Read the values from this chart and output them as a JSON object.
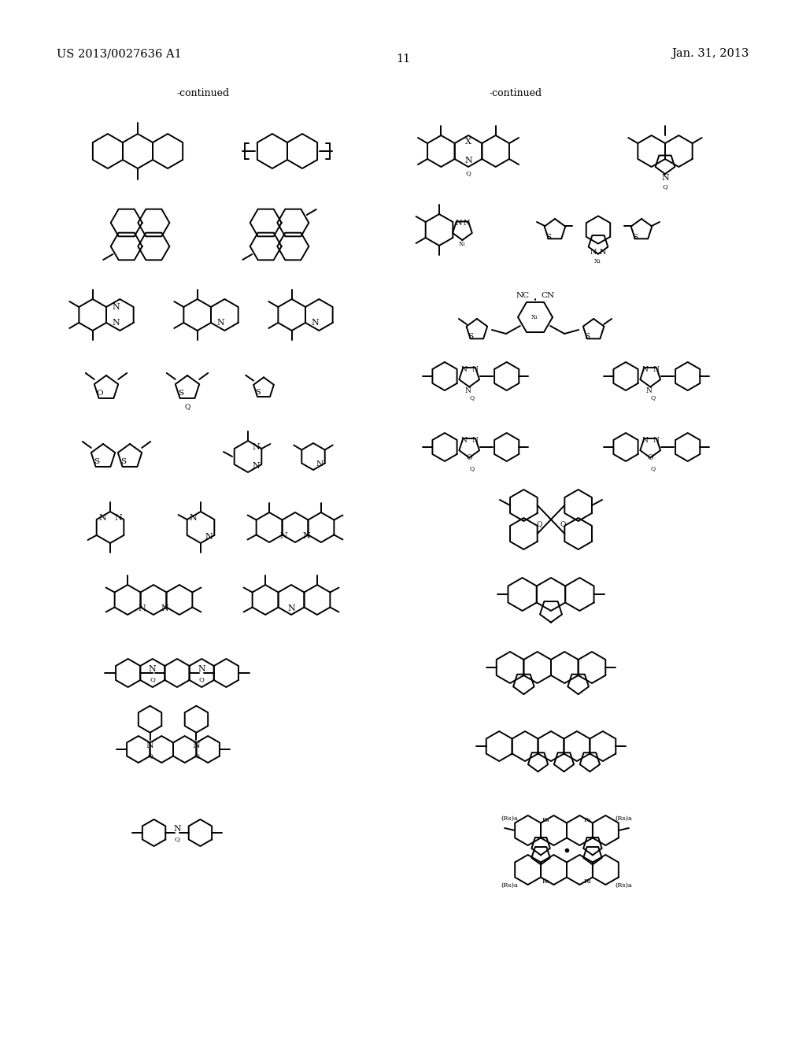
{
  "background_color": "#ffffff",
  "header_left": "US 2013/0027636 A1",
  "header_right": "Jan. 31, 2013",
  "page_number": "11",
  "continued_left": "-continued",
  "continued_right": "-continued"
}
